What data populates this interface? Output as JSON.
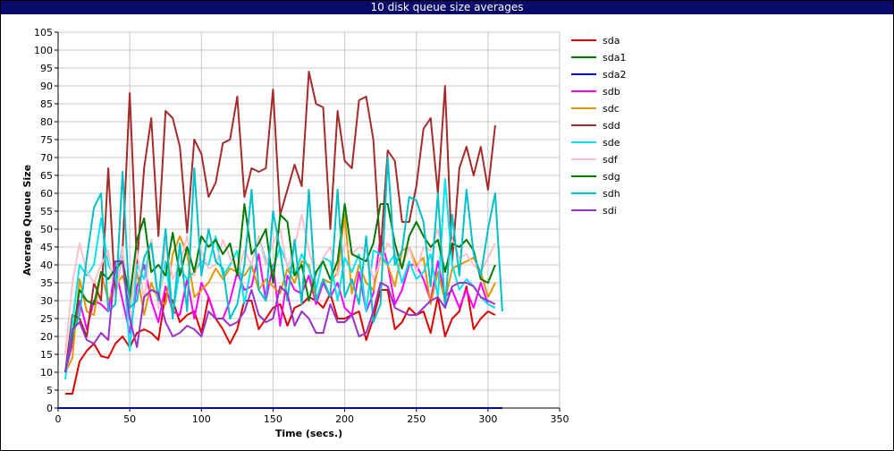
{
  "window": {
    "title": "10 disk queue size averages"
  },
  "chart_data": {
    "type": "line",
    "title": "10 disk queue size averages",
    "xlabel": "Time (secs.)",
    "ylabel": "Average Queue Size",
    "xlim": [
      0,
      350
    ],
    "ylim": [
      0,
      105
    ],
    "xticks": [
      "0",
      "50",
      "100",
      "150",
      "200",
      "250",
      "300",
      "350"
    ],
    "yticks": [
      "0",
      "5",
      "10",
      "15",
      "20",
      "25",
      "30",
      "35",
      "40",
      "45",
      "50",
      "55",
      "60",
      "65",
      "70",
      "75",
      "80",
      "85",
      "90",
      "95",
      "100",
      "105"
    ],
    "grid": true,
    "legend_position": "right",
    "series": [
      {
        "name": "sda",
        "color": "#dd0000",
        "x": [
          5,
          10,
          15,
          20,
          25,
          30,
          35,
          40,
          45,
          50,
          55,
          60,
          65,
          70,
          75,
          80,
          85,
          90,
          95,
          100,
          105,
          110,
          115,
          120,
          125,
          130,
          135,
          140,
          145,
          150,
          155,
          160,
          165,
          170,
          175,
          180,
          185,
          190,
          195,
          200,
          205,
          210,
          215,
          220,
          225,
          230,
          235,
          240,
          245,
          250,
          255,
          260,
          265,
          270,
          275,
          280,
          285,
          290,
          295,
          300,
          305
        ],
        "y": [
          4,
          4,
          13,
          16,
          18,
          14.5,
          14,
          18,
          20,
          17,
          21,
          22,
          21,
          19,
          32,
          30,
          24,
          26,
          27,
          21,
          31,
          25,
          22,
          18,
          22,
          30,
          30,
          22,
          25,
          28,
          29,
          23,
          28,
          29,
          31,
          30,
          28,
          32,
          25,
          25,
          26,
          27,
          19,
          25,
          33,
          33,
          22,
          24,
          28,
          26,
          27,
          21,
          31,
          20,
          25,
          27,
          34,
          22,
          25,
          27,
          26
        ]
      },
      {
        "name": "sda1",
        "color": "#008000",
        "x": [
          0,
          310
        ],
        "y": [
          0,
          0
        ]
      },
      {
        "name": "sda2",
        "color": "#0000cc",
        "x": [
          0,
          310
        ],
        "y": [
          0,
          0
        ]
      },
      {
        "name": "sdb",
        "color": "#ff00ff",
        "x": [
          5,
          10,
          15,
          20,
          25,
          30,
          35,
          40,
          45,
          50,
          55,
          60,
          65,
          70,
          75,
          80,
          85,
          90,
          95,
          100,
          105,
          110,
          115,
          120,
          125,
          130,
          135,
          140,
          145,
          150,
          155,
          160,
          165,
          170,
          175,
          180,
          185,
          190,
          195,
          200,
          205,
          210,
          215,
          220,
          225,
          230,
          235,
          240,
          245,
          250,
          255,
          260,
          265,
          270,
          275,
          280,
          285,
          290,
          295,
          300,
          305
        ],
        "y": [
          10,
          18,
          30,
          22,
          30,
          29,
          27,
          39,
          30,
          21,
          34,
          40,
          30,
          24,
          34,
          27,
          26,
          36,
          25,
          35,
          31,
          25,
          25,
          30,
          38,
          33,
          34,
          43,
          30,
          40,
          23,
          37,
          33,
          32,
          37,
          29,
          35,
          31,
          35,
          28,
          26,
          38,
          27,
          32,
          48,
          40,
          29,
          33,
          40,
          40,
          36,
          30,
          41,
          31,
          33,
          28,
          33,
          28,
          35,
          29,
          28
        ]
      },
      {
        "name": "sdc",
        "color": "#e69500",
        "x": [
          5,
          10,
          15,
          20,
          25,
          30,
          35,
          40,
          45,
          50,
          55,
          60,
          65,
          70,
          75,
          80,
          85,
          90,
          95,
          100,
          105,
          110,
          115,
          120,
          125,
          130,
          135,
          140,
          145,
          150,
          155,
          160,
          165,
          170,
          175,
          180,
          185,
          190,
          195,
          200,
          205,
          210,
          215,
          220,
          225,
          230,
          235,
          240,
          245,
          250,
          255,
          260,
          265,
          270,
          275,
          280,
          285,
          290,
          295,
          300,
          305
        ],
        "y": [
          10,
          14,
          36,
          27,
          26,
          38,
          30,
          34,
          37,
          30,
          38,
          26,
          35,
          30,
          29,
          43,
          48,
          43,
          31,
          33,
          35,
          39,
          36,
          39,
          38,
          37,
          40,
          33,
          36,
          34,
          32,
          39,
          35,
          41,
          40,
          30,
          36,
          35,
          38,
          54,
          32,
          40,
          35,
          33,
          42,
          40,
          34,
          44,
          45,
          40,
          42,
          29,
          38,
          30,
          39,
          40,
          41,
          42,
          38,
          31,
          35
        ]
      },
      {
        "name": "sdd",
        "color": "#a52a2a",
        "x": [
          5,
          10,
          15,
          20,
          25,
          30,
          35,
          40,
          45,
          50,
          55,
          60,
          65,
          70,
          75,
          80,
          85,
          90,
          95,
          100,
          105,
          110,
          115,
          120,
          125,
          130,
          135,
          140,
          145,
          150,
          155,
          160,
          165,
          170,
          175,
          180,
          185,
          190,
          195,
          200,
          205,
          210,
          215,
          220,
          225,
          230,
          235,
          240,
          245,
          250,
          255,
          260,
          265,
          270,
          275,
          280,
          285,
          290,
          295,
          300,
          305
        ],
        "y": [
          10,
          26,
          25,
          20,
          35,
          30,
          67,
          31,
          44,
          88,
          40,
          67,
          81,
          48,
          83,
          81,
          73,
          49,
          75,
          71,
          59,
          63,
          74,
          75,
          87,
          59,
          67,
          66,
          67,
          89,
          54,
          61,
          68,
          62,
          94,
          85,
          84,
          50,
          83,
          69,
          67,
          86,
          87,
          75,
          43,
          72,
          69,
          52,
          52,
          62,
          78,
          81,
          60,
          90,
          41,
          67,
          73,
          65,
          73,
          61,
          79
        ]
      },
      {
        "name": "sde",
        "color": "#00e5ee",
        "x": [
          5,
          10,
          15,
          20,
          25,
          30,
          35,
          40,
          45,
          50,
          55,
          60,
          65,
          70,
          75,
          80,
          85,
          90,
          95,
          100,
          105,
          110,
          115,
          120,
          125,
          130,
          135,
          140,
          145,
          150,
          155,
          160,
          165,
          170,
          175,
          180,
          185,
          190,
          195,
          200,
          205,
          210,
          215,
          220,
          225,
          230,
          235,
          240,
          245,
          250,
          255,
          260,
          265,
          270,
          275,
          280,
          285,
          290,
          295,
          300,
          305
        ],
        "y": [
          8,
          24,
          40,
          37,
          40,
          53,
          40,
          36,
          45,
          16,
          40,
          36,
          47,
          30,
          41,
          26,
          39,
          36,
          38,
          41,
          40,
          48,
          37,
          40,
          44,
          29,
          40,
          48,
          41,
          39,
          45,
          40,
          37,
          43,
          39,
          33,
          42,
          41,
          30,
          42,
          38,
          43,
          27,
          44,
          43,
          40,
          43,
          35,
          41,
          36,
          38,
          43,
          31,
          64,
          40,
          33,
          36,
          34,
          31,
          29,
          28
        ]
      },
      {
        "name": "sdf",
        "color": "#ffc0cb",
        "x": [
          5,
          10,
          15,
          20,
          25,
          30,
          35,
          40,
          45,
          50,
          55,
          60,
          65,
          70,
          75,
          80,
          85,
          90,
          95,
          100,
          105,
          110,
          115,
          120,
          125,
          130,
          135,
          140,
          145,
          150,
          155,
          160,
          165,
          170,
          175,
          180,
          185,
          190,
          195,
          200,
          205,
          210,
          215,
          220,
          225,
          230,
          235,
          240,
          245,
          250,
          255,
          260,
          265,
          270,
          275,
          280,
          285,
          290,
          295,
          300,
          305
        ],
        "y": [
          15,
          35,
          46,
          38,
          35,
          40,
          44,
          30,
          45,
          25,
          44,
          30,
          47,
          28,
          46,
          36,
          40,
          48,
          37,
          44,
          39,
          40,
          47,
          42,
          38,
          44,
          40,
          48,
          40,
          46,
          50,
          39,
          45,
          54,
          44,
          37,
          42,
          45,
          37,
          46,
          43,
          45,
          44,
          36,
          41,
          46,
          44,
          39,
          45,
          38,
          45,
          44,
          50,
          38,
          47,
          42,
          43,
          40,
          38,
          42,
          46
        ]
      },
      {
        "name": "sdg",
        "color": "#007a00",
        "x": [
          5,
          10,
          15,
          20,
          25,
          30,
          35,
          40,
          45,
          50,
          55,
          60,
          65,
          70,
          75,
          80,
          85,
          90,
          95,
          100,
          105,
          110,
          115,
          120,
          125,
          130,
          135,
          140,
          145,
          150,
          155,
          160,
          165,
          170,
          175,
          180,
          185,
          190,
          195,
          200,
          205,
          210,
          215,
          220,
          225,
          230,
          235,
          240,
          245,
          250,
          255,
          260,
          265,
          270,
          275,
          280,
          285,
          290,
          295,
          300,
          305
        ],
        "y": [
          10,
          20,
          33,
          30,
          29,
          38,
          36,
          39,
          41,
          31,
          47,
          53,
          38,
          40,
          37,
          49,
          37,
          45,
          38,
          48,
          45,
          47,
          43,
          46,
          37,
          57,
          43,
          46,
          50,
          35,
          54,
          52,
          37,
          40,
          30,
          38,
          41,
          36,
          41,
          57,
          43,
          42,
          41,
          46,
          57,
          57,
          46,
          39,
          48,
          52,
          48,
          45,
          47,
          38,
          46,
          45,
          47,
          44,
          36,
          35,
          40
        ]
      },
      {
        "name": "sdh",
        "color": "#00c0c8",
        "x": [
          5,
          10,
          15,
          20,
          25,
          30,
          35,
          40,
          45,
          50,
          55,
          60,
          65,
          70,
          75,
          80,
          85,
          90,
          95,
          100,
          105,
          110,
          115,
          120,
          125,
          130,
          135,
          140,
          145,
          150,
          155,
          160,
          165,
          170,
          175,
          180,
          185,
          190,
          195,
          200,
          205,
          210,
          215,
          220,
          225,
          230,
          235,
          240,
          245,
          250,
          255,
          260,
          265,
          270,
          275,
          280,
          285,
          290,
          295,
          300,
          305,
          310
        ],
        "y": [
          10,
          21,
          26,
          42,
          56,
          60,
          27,
          29,
          66,
          28,
          30,
          42,
          46,
          30,
          50,
          25,
          46,
          27,
          67,
          37,
          50,
          41,
          39,
          25,
          29,
          40,
          61,
          33,
          30,
          55,
          44,
          30,
          47,
          29,
          61,
          30,
          36,
          31,
          61,
          31,
          36,
          29,
          48,
          24,
          29,
          70,
          40,
          44,
          59,
          58,
          52,
          34,
          60,
          28,
          54,
          37,
          61,
          43,
          37,
          50,
          60,
          27
        ]
      },
      {
        "name": "sdi",
        "color": "#9932cc",
        "x": [
          5,
          10,
          15,
          20,
          25,
          30,
          35,
          40,
          45,
          50,
          55,
          60,
          65,
          70,
          75,
          80,
          85,
          90,
          95,
          100,
          105,
          110,
          115,
          120,
          125,
          130,
          135,
          140,
          145,
          150,
          155,
          160,
          165,
          170,
          175,
          180,
          185,
          190,
          195,
          200,
          205,
          210,
          215,
          220,
          225,
          230,
          235,
          240,
          245,
          250,
          255,
          260,
          265,
          270,
          275,
          280,
          285,
          290,
          295,
          300,
          305
        ],
        "y": [
          10,
          22,
          24,
          19,
          18,
          21,
          19,
          41,
          41,
          25,
          17,
          31,
          33,
          32,
          24,
          20,
          21,
          23,
          22,
          20,
          27,
          25,
          25,
          23,
          24,
          27,
          33,
          26,
          24,
          25,
          34,
          32,
          23,
          27,
          25,
          21,
          21,
          29,
          24,
          24,
          26,
          20,
          21,
          27,
          35,
          34,
          28,
          27,
          26,
          26,
          28,
          30,
          31,
          28,
          34,
          35,
          35,
          34,
          31,
          30,
          29
        ]
      }
    ]
  }
}
